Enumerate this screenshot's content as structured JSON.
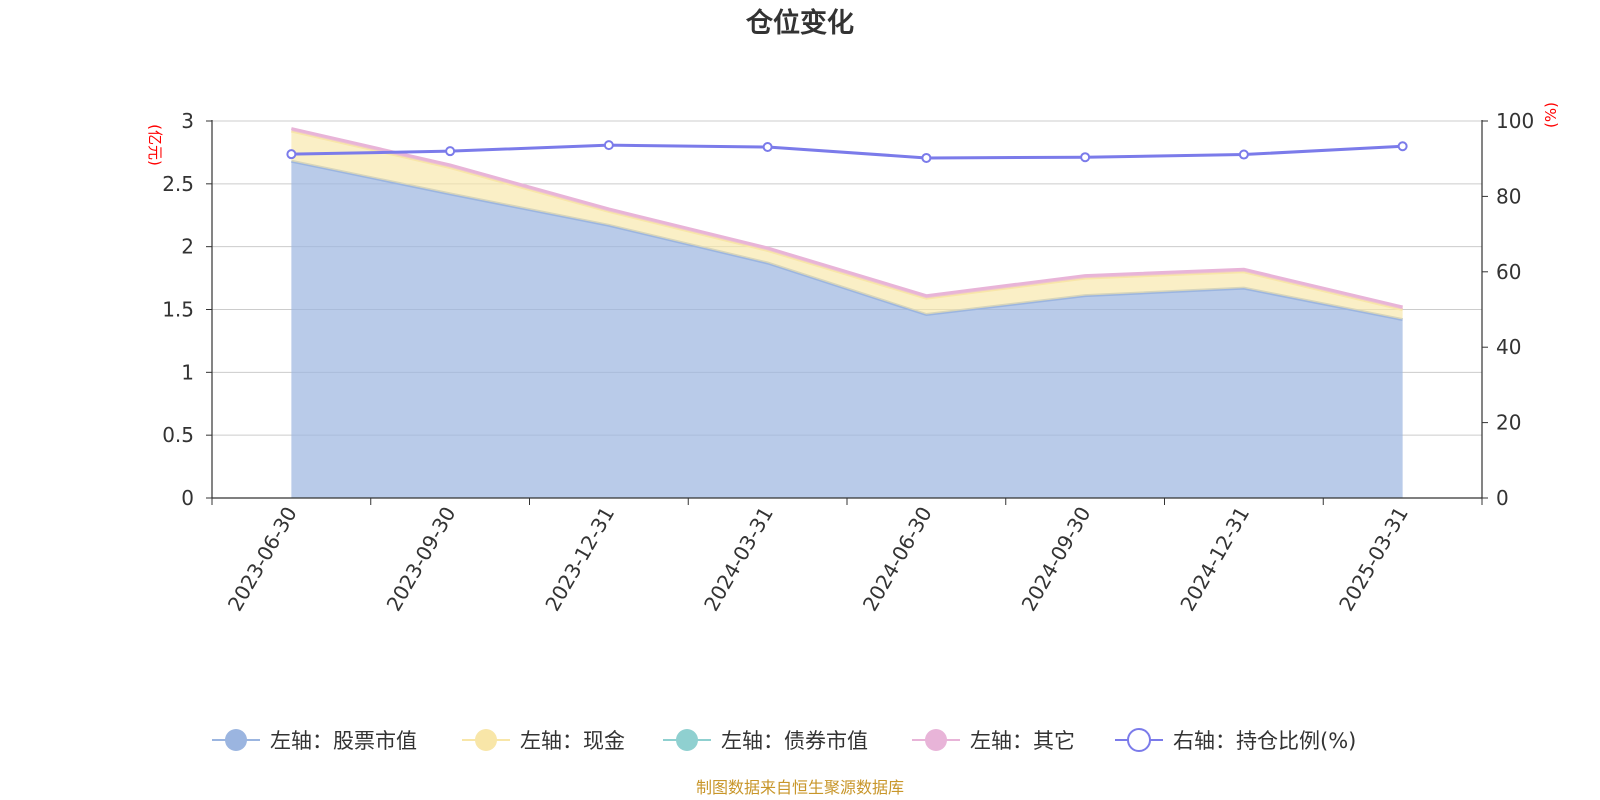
{
  "chart_data": {
    "type": "area",
    "title": "仓位变化",
    "left_axis_unit": "(亿元)",
    "right_axis_unit": "(%)",
    "categories": [
      "2023-06-30",
      "2023-09-30",
      "2023-12-31",
      "2024-03-31",
      "2024-06-30",
      "2024-09-30",
      "2024-12-31",
      "2025-03-31"
    ],
    "ylim_left": [
      0,
      3
    ],
    "yticks_left": [
      "0",
      "0.5",
      "1",
      "1.5",
      "2",
      "2.5",
      "3"
    ],
    "ylim_right": [
      0,
      100
    ],
    "yticks_right": [
      "0",
      "20",
      "40",
      "60",
      "80",
      "100"
    ],
    "grid": true,
    "legend_position": "bottom",
    "series": [
      {
        "name": "左轴：股票市值",
        "axis": "left",
        "kind": "stacked-area",
        "color": "#9bb5e0",
        "values": [
          2.68,
          2.42,
          2.17,
          1.87,
          1.46,
          1.61,
          1.67,
          1.42
        ]
      },
      {
        "name": "左轴：现金",
        "axis": "left",
        "kind": "stacked-area",
        "color": "#f8e6a8",
        "values": [
          0.24,
          0.21,
          0.11,
          0.1,
          0.13,
          0.14,
          0.13,
          0.08
        ]
      },
      {
        "name": "左轴：债券市值",
        "axis": "left",
        "kind": "stacked-area",
        "color": "#8fd0d0",
        "values": [
          0,
          0,
          0,
          0,
          0,
          0,
          0,
          0
        ]
      },
      {
        "name": "左轴：其它",
        "axis": "left",
        "kind": "stacked-area",
        "color": "#e8b4d8",
        "values": [
          0.02,
          0.02,
          0.02,
          0.02,
          0.02,
          0.02,
          0.02,
          0.02
        ]
      },
      {
        "name": "右轴：持仓比例(%)",
        "axis": "right",
        "kind": "line",
        "color": "#7b7bea",
        "values": [
          91.2,
          92.0,
          93.6,
          93.1,
          90.2,
          90.4,
          91.1,
          93.3
        ]
      }
    ]
  },
  "footer": {
    "source": "制图数据来自恒生聚源数据库"
  }
}
